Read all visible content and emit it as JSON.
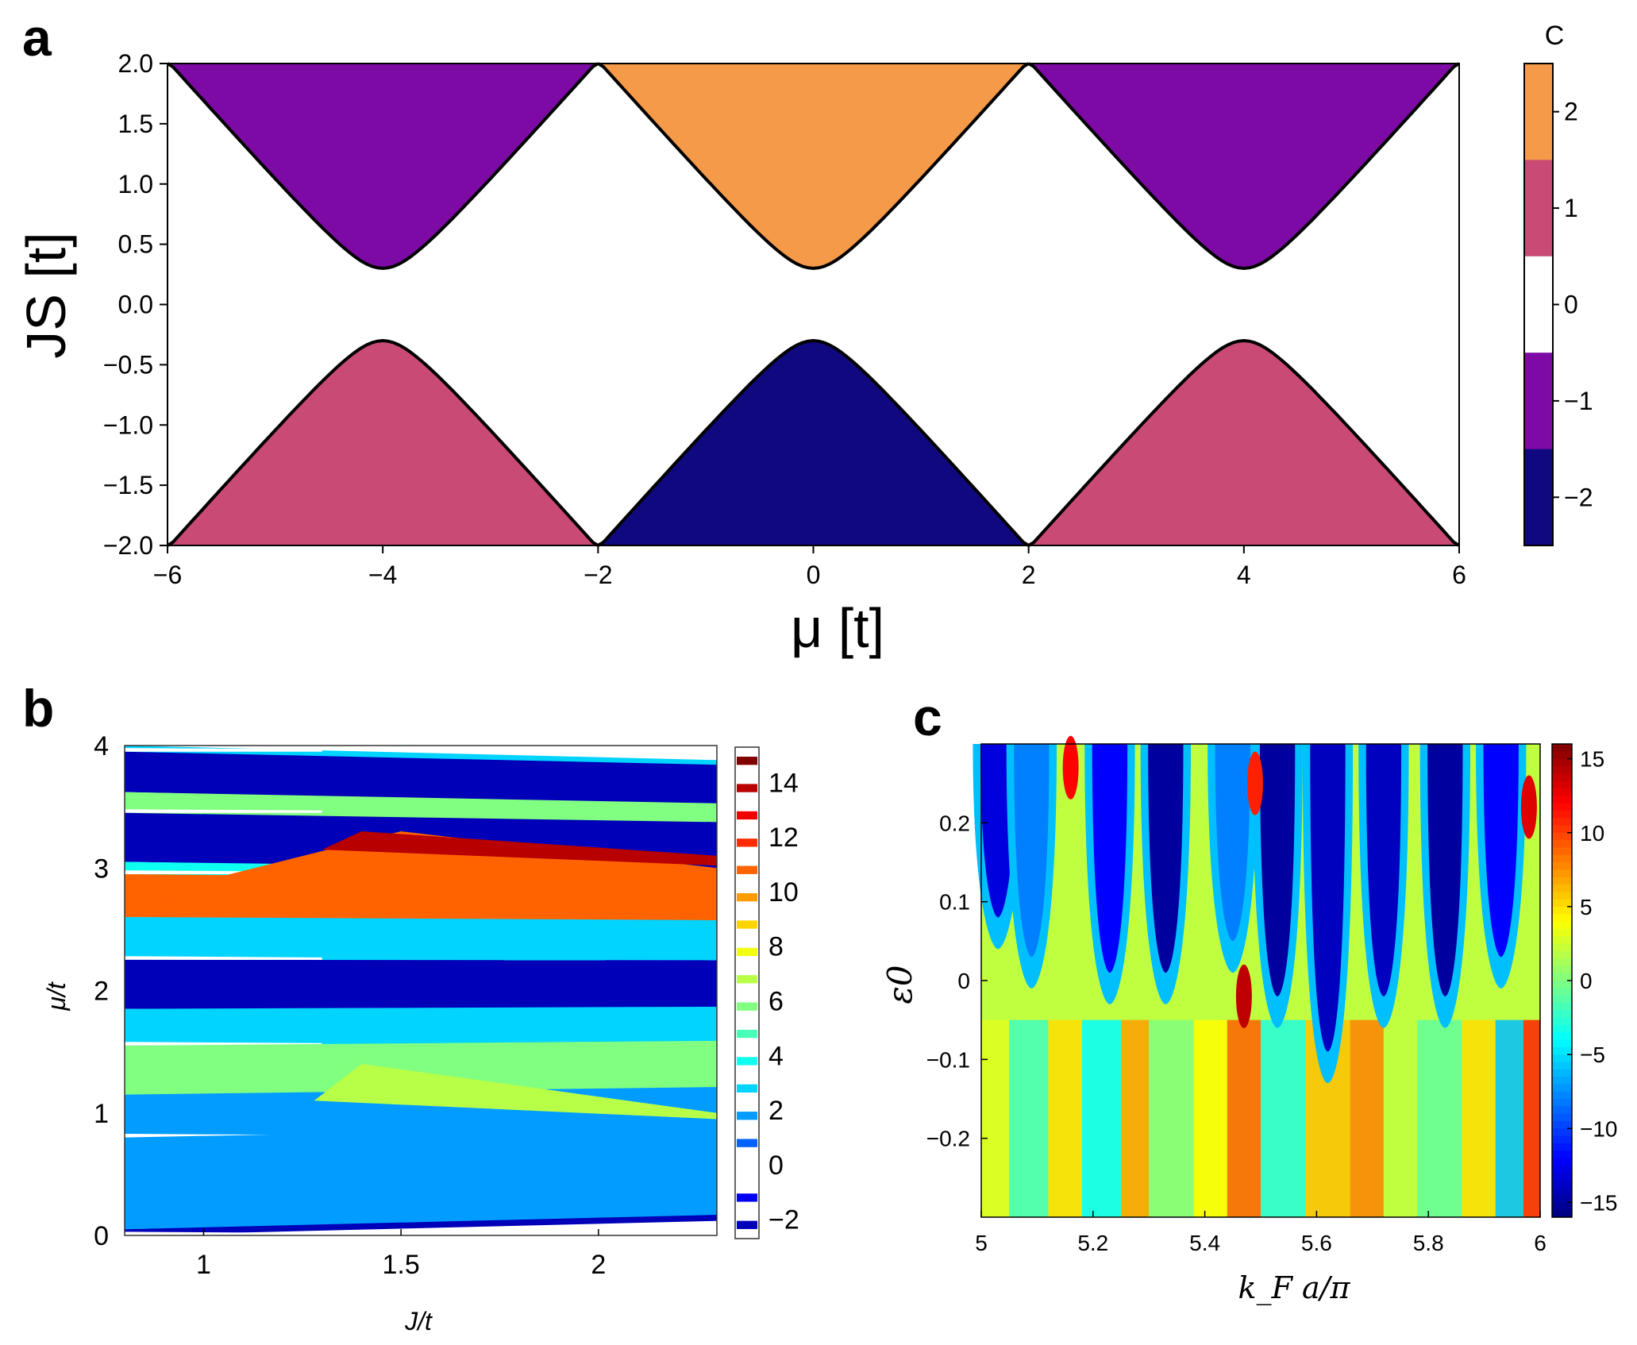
{
  "panels": {
    "a": {
      "label": "a",
      "chart_data": {
        "type": "heatmap",
        "title": "",
        "xlabel": "μ [t]",
        "ylabel": "JS [t]",
        "xlim": [
          -6,
          6
        ],
        "ylim": [
          -2.0,
          2.0
        ],
        "xticks": [
          "−6",
          "−4",
          "−2",
          "0",
          "2",
          "4",
          "6"
        ],
        "yticks": [
          "2.0",
          "1.5",
          "1.0",
          "0.5",
          "0.0",
          "−0.5",
          "−1.0",
          "−1.5",
          "−2.0"
        ],
        "gap_min_abs_JS": 0.3,
        "lobes": [
          {
            "x_from": -6,
            "x_to": -2,
            "center": -4,
            "sign": "upper",
            "C": -1
          },
          {
            "x_from": -2,
            "x_to": 2,
            "center": 0,
            "sign": "upper",
            "C": 2
          },
          {
            "x_from": 2,
            "x_to": 6,
            "center": 4,
            "sign": "upper",
            "C": -1
          },
          {
            "x_from": -6,
            "x_to": -2,
            "center": -4,
            "sign": "lower",
            "C": 1
          },
          {
            "x_from": -2,
            "x_to": 2,
            "center": 0,
            "sign": "lower",
            "C": -2
          },
          {
            "x_from": 2,
            "x_to": 6,
            "center": 4,
            "sign": "lower",
            "C": 1
          }
        ],
        "colorbar": {
          "title": "C",
          "ticks": [
            "2",
            "1",
            "0",
            "−1",
            "−2"
          ],
          "levels": [
            {
              "C": 2,
              "color": "#f59a48"
            },
            {
              "C": 1,
              "color": "#c94b75"
            },
            {
              "C": 0,
              "color": "#ffffff"
            },
            {
              "C": -1,
              "color": "#7d0aa5"
            },
            {
              "C": -2,
              "color": "#10087f"
            }
          ]
        }
      }
    },
    "b": {
      "label": "b",
      "chart_data": {
        "type": "heatmap",
        "xlabel": "J/t",
        "ylabel": "μ/t",
        "xlim": [
          0.8,
          2.3
        ],
        "ylim": [
          0,
          4
        ],
        "xticks": [
          "1",
          "1.5",
          "2"
        ],
        "yticks": [
          "4",
          "3",
          "2",
          "1",
          "0"
        ],
        "colorbar": {
          "ticks": [
            "14",
            "12",
            "10",
            "8",
            "6",
            "4",
            "2",
            "0",
            "−2"
          ],
          "range": [
            -3,
            15
          ]
        },
        "bands": [
          {
            "y": [
              3.95,
              4.0
            ],
            "value": 3
          },
          {
            "y": [
              3.62,
              3.95
            ],
            "value": -2
          },
          {
            "y": [
              3.45,
              3.62
            ],
            "value": 6
          },
          {
            "y": [
              3.05,
              3.45
            ],
            "value": -2
          },
          {
            "y": [
              2.95,
              3.05
            ],
            "value": 4
          },
          {
            "y": [
              2.6,
              2.95
            ],
            "value": 11
          },
          {
            "y": [
              2.25,
              2.6
            ],
            "value": 3
          },
          {
            "y": [
              1.85,
              2.25
            ],
            "value": -2
          },
          {
            "y": [
              1.55,
              1.85
            ],
            "value": 3
          },
          {
            "y": [
              1.15,
              1.55
            ],
            "value": 6
          },
          {
            "y": [
              0.8,
              1.15
            ],
            "value": 2
          },
          {
            "y": [
              0.05,
              0.8
            ],
            "value": 2
          },
          {
            "y": [
              0.0,
              0.05
            ],
            "value": -2
          }
        ]
      }
    },
    "c": {
      "label": "c",
      "chart_data": {
        "type": "heatmap",
        "xlabel": "k_F a/π",
        "ylabel": "ε0",
        "xlim": [
          5,
          6
        ],
        "ylim": [
          -0.3,
          0.3
        ],
        "xticks": [
          "5",
          "5.2",
          "5.4",
          "5.6",
          "5.8",
          "6"
        ],
        "yticks": [
          "0.2",
          "0.1",
          "0",
          "−0.1",
          "−0.2"
        ],
        "colorbar": {
          "ticks": [
            "15",
            "10",
            "5",
            "0",
            "−5",
            "−10",
            "−15"
          ],
          "range": [
            -16,
            16
          ]
        },
        "dips": [
          {
            "x": 5.03,
            "depth": 0.05,
            "value": -13
          },
          {
            "x": 5.09,
            "depth": 0.0,
            "value": -8
          },
          {
            "x": 5.23,
            "depth": -0.02,
            "value": -12
          },
          {
            "x": 5.33,
            "depth": -0.02,
            "value": -15
          },
          {
            "x": 5.45,
            "depth": 0.02,
            "value": -8
          },
          {
            "x": 5.53,
            "depth": -0.05,
            "value": -15
          },
          {
            "x": 5.62,
            "depth": -0.12,
            "value": -14
          },
          {
            "x": 5.72,
            "depth": -0.05,
            "value": -14
          },
          {
            "x": 5.83,
            "depth": -0.05,
            "value": -15
          },
          {
            "x": 5.93,
            "depth": 0.0,
            "value": -12
          }
        ]
      }
    }
  }
}
